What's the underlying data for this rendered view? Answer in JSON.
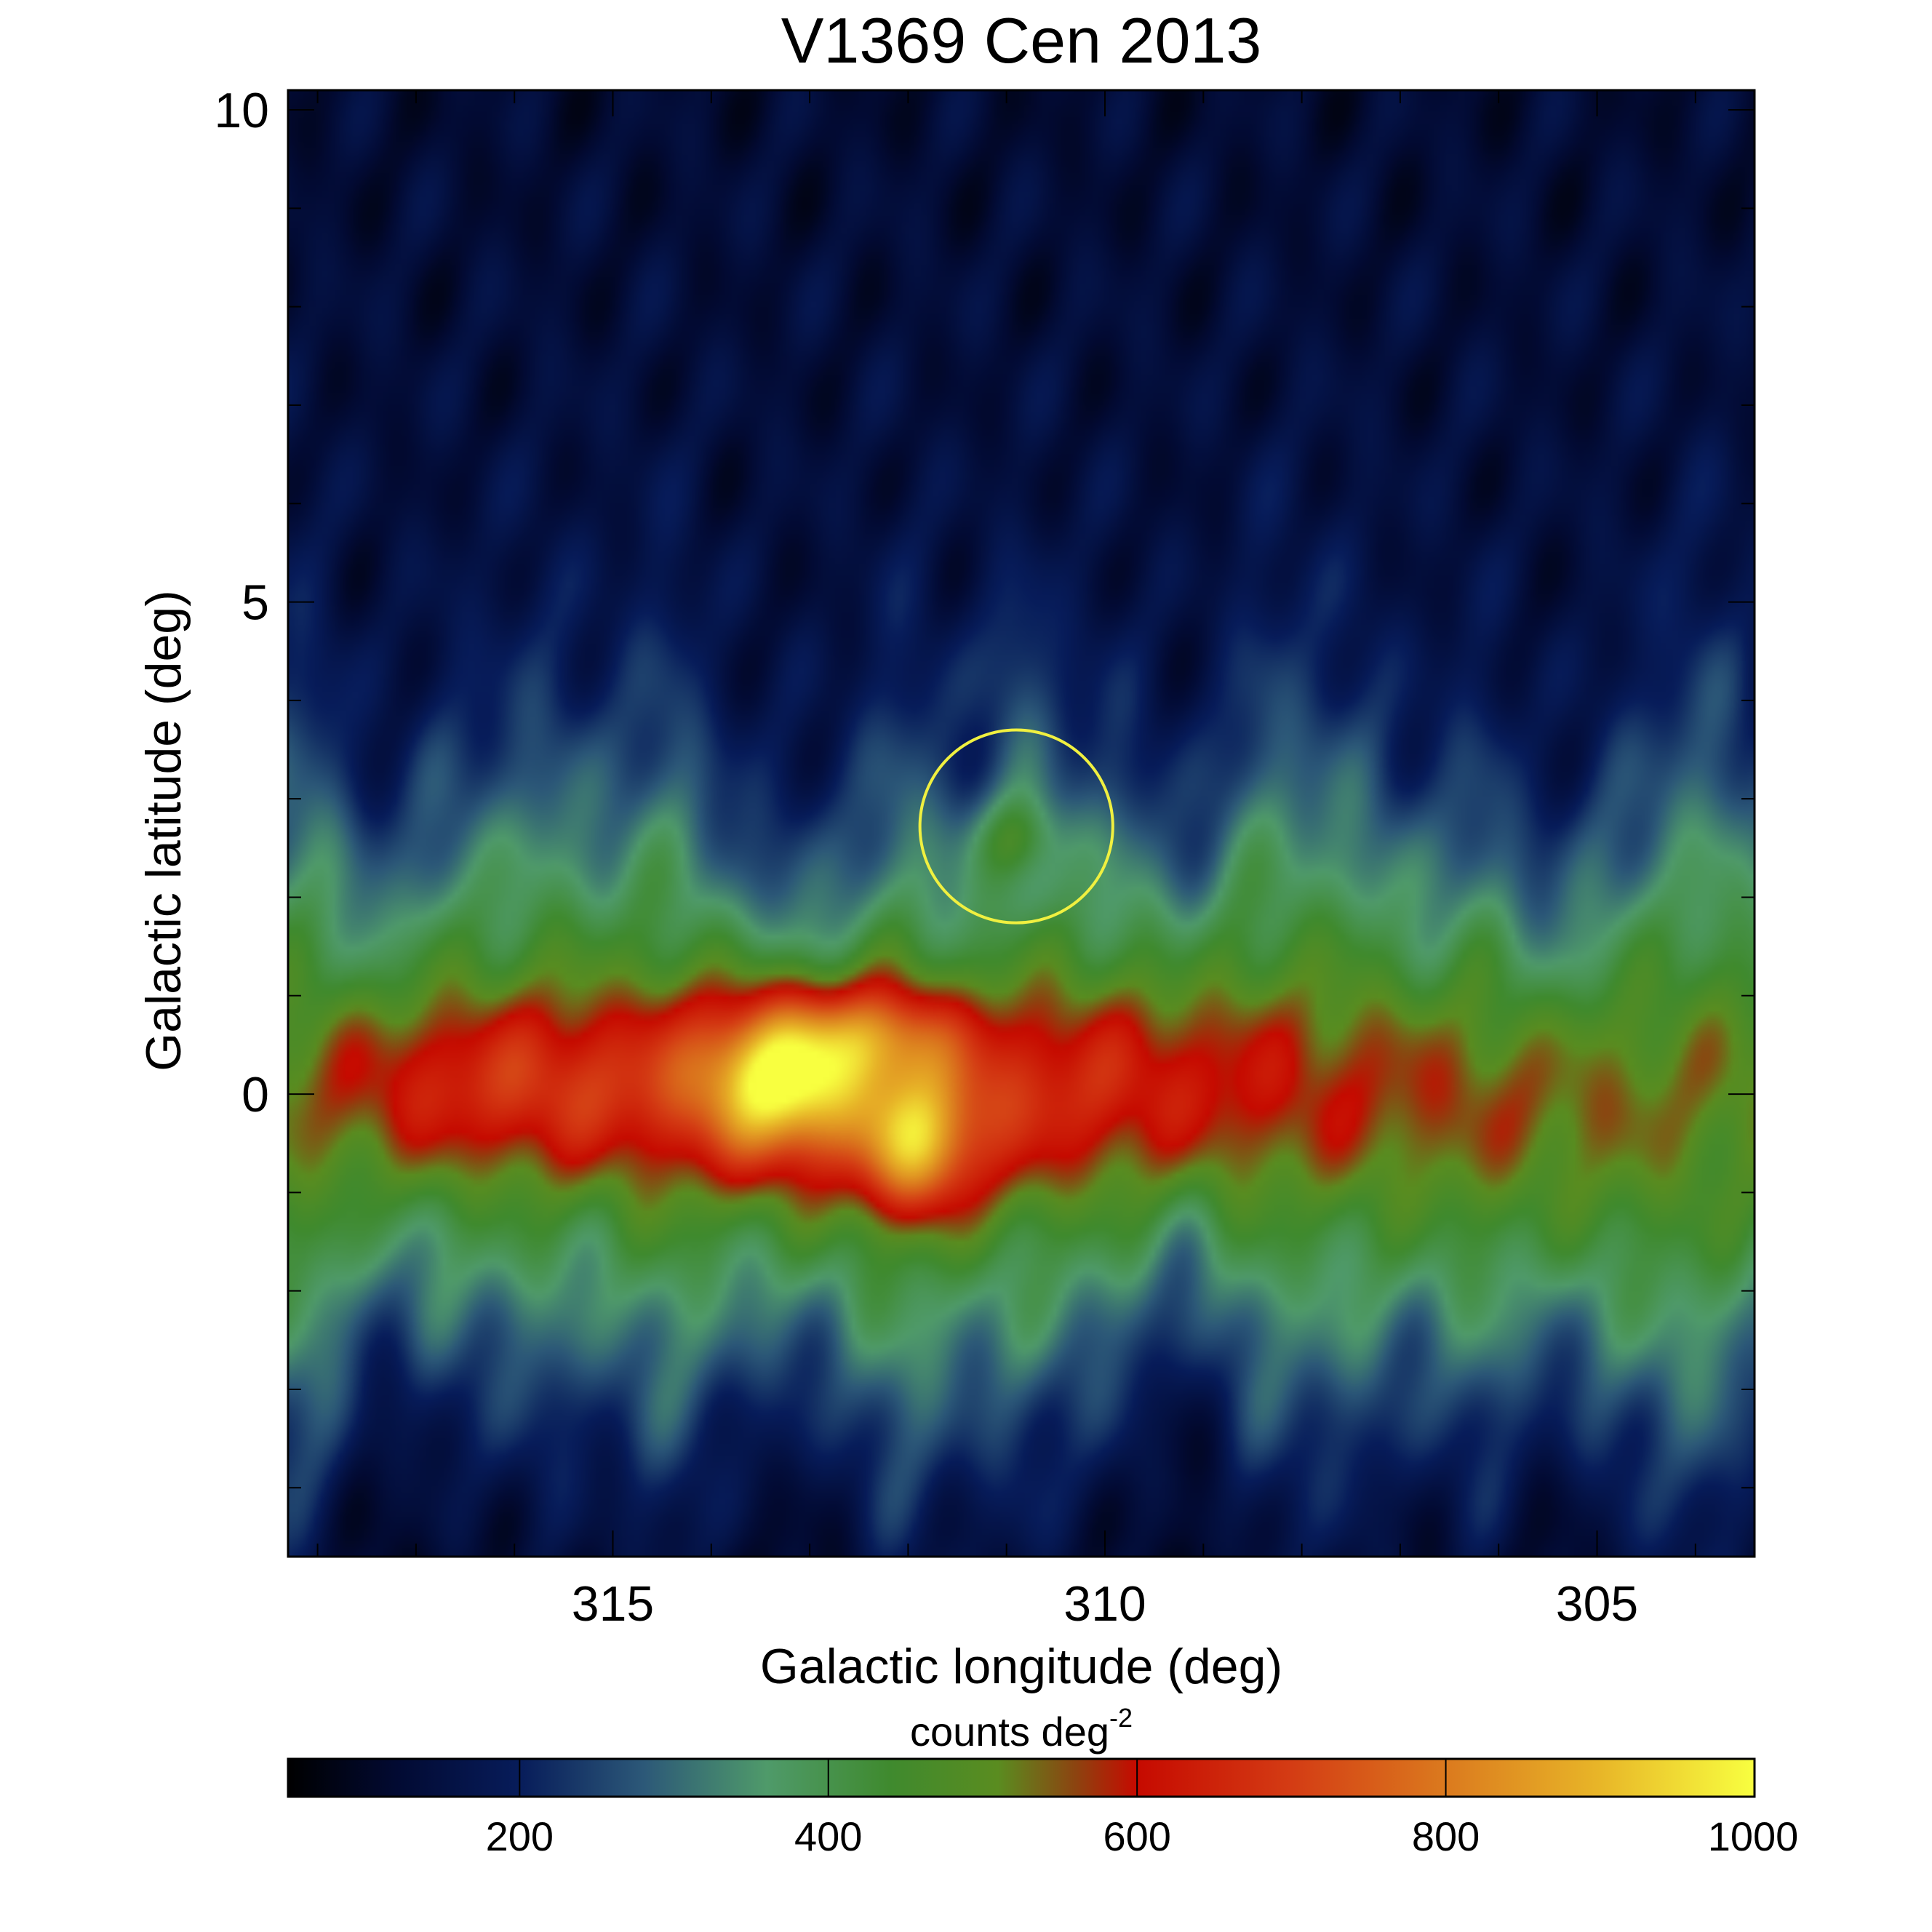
{
  "chart_data": {
    "type": "heatmap",
    "title": "V1369 Cen 2013",
    "xlabel": "Galactic longitude (deg)",
    "ylabel": "Galactic latitude (deg)",
    "xlim": [
      318.3,
      303.4
    ],
    "ylim": [
      -4.7,
      10.2
    ],
    "xticks": [
      315,
      310,
      305
    ],
    "yticks": [
      0,
      5,
      10
    ],
    "colorbar": {
      "label_text": "counts deg",
      "label_exponent": "-2",
      "range": [
        50,
        1000
      ],
      "ticks": [
        200,
        400,
        600,
        800,
        1000
      ],
      "stops": [
        {
          "value": 50,
          "color": "#000000"
        },
        {
          "value": 120,
          "color": "#020a32"
        },
        {
          "value": 200,
          "color": "#071c5a"
        },
        {
          "value": 280,
          "color": "#2c5878"
        },
        {
          "value": 360,
          "color": "#4f9a6a"
        },
        {
          "value": 440,
          "color": "#3f8a2e"
        },
        {
          "value": 510,
          "color": "#5a8c20"
        },
        {
          "value": 560,
          "color": "#8c4410"
        },
        {
          "value": 600,
          "color": "#c60a00"
        },
        {
          "value": 700,
          "color": "#d43c14"
        },
        {
          "value": 800,
          "color": "#db7a1e"
        },
        {
          "value": 900,
          "color": "#e8b628"
        },
        {
          "value": 1000,
          "color": "#f8ff40"
        }
      ]
    },
    "annotations": [
      {
        "type": "circle",
        "l": 310.9,
        "b": 2.72,
        "radius_deg": 0.98,
        "color": "#f0f040"
      }
    ],
    "features": [
      {
        "name": "galactic-plane",
        "b_center": -0.1,
        "b_width": 1.7,
        "peak": 560
      },
      {
        "name": "bright-core",
        "l": 313.0,
        "b": 0.15,
        "peak": 1000
      },
      {
        "name": "point-source",
        "l": 310.9,
        "b": 2.6,
        "peak": 440
      }
    ]
  }
}
